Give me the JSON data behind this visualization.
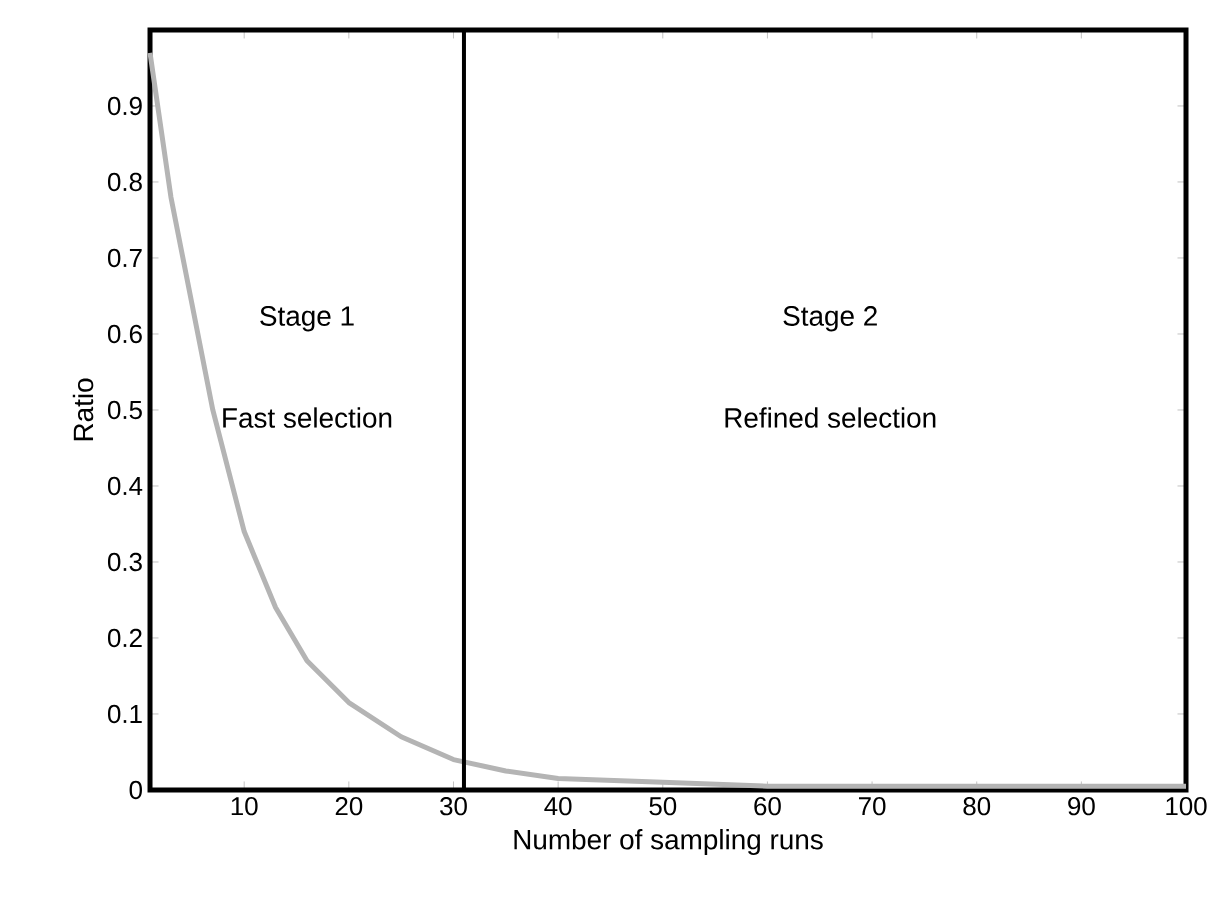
{
  "chart_data": {
    "type": "line",
    "xlabel": "Number of sampling runs",
    "ylabel": "Ratio",
    "series": [
      {
        "color": "#b4b4b4",
        "x": [
          1,
          3,
          5,
          7,
          10,
          13,
          16,
          20,
          25,
          30,
          35,
          40,
          50,
          60,
          70,
          80,
          90,
          100
        ],
        "values": [
          0.97,
          0.78,
          0.64,
          0.5,
          0.34,
          0.24,
          0.17,
          0.115,
          0.07,
          0.04,
          0.025,
          0.015,
          0.01,
          0.005,
          0.005,
          0.005,
          0.005,
          0.005
        ]
      }
    ],
    "xlim": [
      1,
      100
    ],
    "ylim": [
      0,
      1
    ],
    "xticks": [
      10,
      20,
      30,
      40,
      50,
      60,
      70,
      80,
      90,
      100
    ],
    "yticks": [
      0,
      0.1,
      0.2,
      0.3,
      0.4,
      0.5,
      0.6,
      0.7,
      0.8,
      0.9
    ],
    "ref_lines": [
      {
        "axis": "x",
        "value": 31,
        "color": "#000000"
      }
    ],
    "annotations": [
      "Stage 1",
      "Fast selection",
      "Stage 2",
      "Refined selection"
    ],
    "grid": false,
    "marker": "none",
    "line_style": "solid"
  }
}
